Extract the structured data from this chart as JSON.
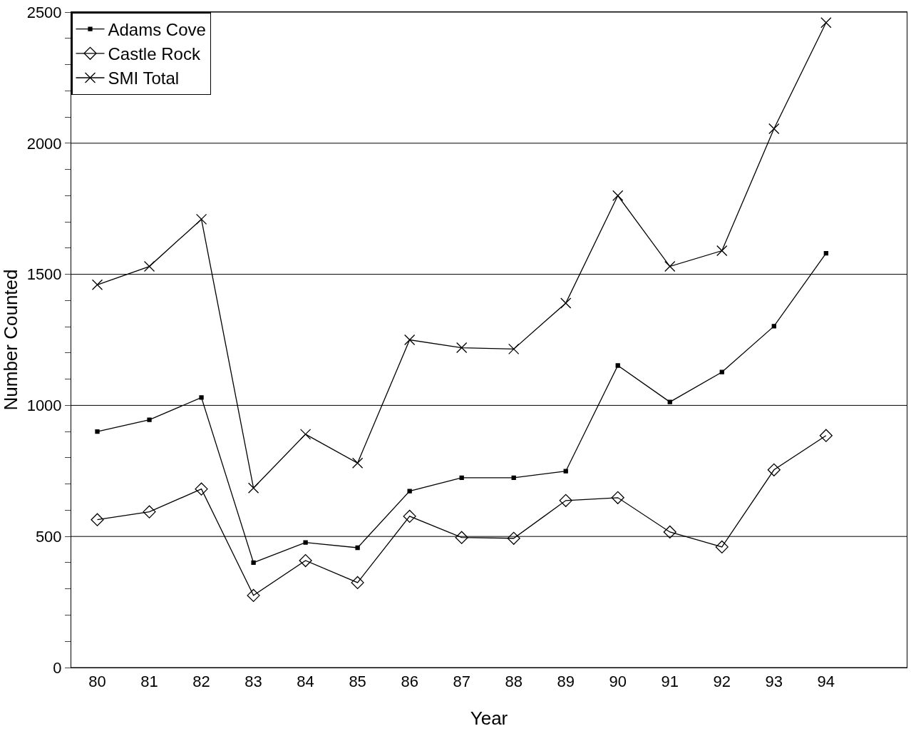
{
  "chart_data": {
    "type": "line",
    "xlabel": "Year",
    "ylabel": "Number Counted",
    "x": [
      80,
      81,
      82,
      83,
      84,
      85,
      86,
      87,
      88,
      89,
      90,
      91,
      92,
      93,
      94
    ],
    "xlim": [
      79.5,
      95.55
    ],
    "xticks": [
      80,
      81,
      82,
      83,
      84,
      85,
      86,
      87,
      88,
      89,
      90,
      91,
      92,
      93,
      94
    ],
    "ylim": [
      0,
      2500
    ],
    "yticks": [
      0,
      {
        "value": 100,
        "label": null
      },
      {
        "value": 200,
        "label": null
      },
      {
        "value": 300,
        "label": null
      },
      {
        "value": 400,
        "label": null
      },
      500,
      {
        "value": 600,
        "label": null
      },
      {
        "value": 700,
        "label": null
      },
      {
        "value": 800,
        "label": null
      },
      {
        "value": 900,
        "label": null
      },
      1000,
      {
        "value": 1100,
        "label": null
      },
      {
        "value": 1200,
        "label": null
      },
      {
        "value": 1300,
        "label": null
      },
      {
        "value": 1400,
        "label": null
      },
      1500,
      {
        "value": 1600,
        "label": null
      },
      {
        "value": 1700,
        "label": null
      },
      {
        "value": 1800,
        "label": null
      },
      {
        "value": 1900,
        "label": null
      },
      2000,
      {
        "value": 2100,
        "label": null
      },
      {
        "value": 2200,
        "label": null
      },
      {
        "value": 2300,
        "label": null
      },
      {
        "value": 2400,
        "label": null
      },
      2500
    ],
    "grid": "y",
    "legend": "top left",
    "series": [
      {
        "name": "Adams Cove",
        "color": "#000000",
        "marker": "square",
        "values": [
          900,
          945,
          1030,
          400,
          477,
          457,
          673,
          724,
          724,
          749,
          1152,
          1013,
          1127,
          1302,
          1580
        ]
      },
      {
        "name": "Castle Rock",
        "color": "#000000",
        "marker": "diamond",
        "values": [
          564,
          594,
          681,
          275,
          408,
          324,
          577,
          496,
          493,
          637,
          648,
          517,
          460,
          754,
          885
        ]
      },
      {
        "name": "SMI Total",
        "color": "#000000",
        "marker": "cross",
        "values": [
          1460,
          1530,
          1710,
          685,
          890,
          780,
          1250,
          1220,
          1215,
          1390,
          1800,
          1530,
          1590,
          2055,
          2460
        ]
      }
    ]
  }
}
